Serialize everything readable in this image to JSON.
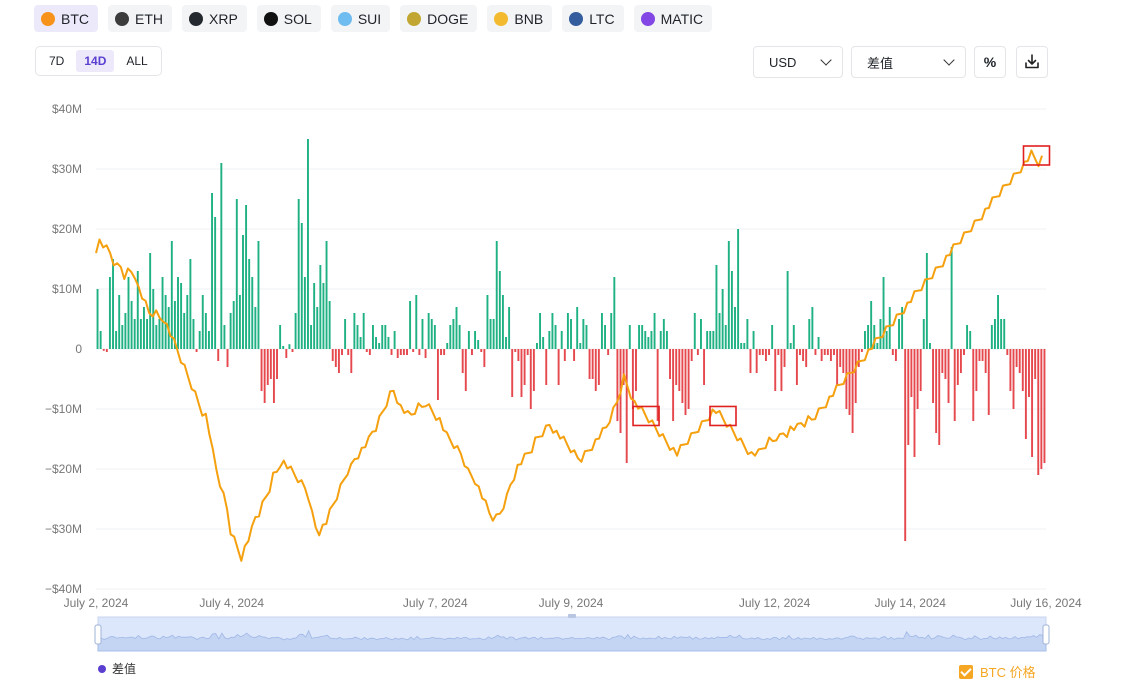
{
  "coins": [
    {
      "label": "BTC",
      "icon": "btc-icon",
      "color": "#f7931a",
      "active": true
    },
    {
      "label": "ETH",
      "icon": "eth-icon",
      "color": "#3c3c3d",
      "active": false
    },
    {
      "label": "XRP",
      "icon": "xrp-icon",
      "color": "#23292f",
      "active": false
    },
    {
      "label": "SOL",
      "icon": "sol-icon",
      "color": "#111111",
      "active": false
    },
    {
      "label": "SUI",
      "icon": "sui-icon",
      "color": "#6fbcf0",
      "active": false
    },
    {
      "label": "DOGE",
      "icon": "doge-icon",
      "color": "#c2a633",
      "active": false
    },
    {
      "label": "BNB",
      "icon": "bnb-icon",
      "color": "#f3ba2f",
      "active": false
    },
    {
      "label": "LTC",
      "icon": "ltc-icon",
      "color": "#345d9d",
      "active": false
    },
    {
      "label": "MATIC",
      "icon": "matic-icon",
      "color": "#8247e5",
      "active": false
    }
  ],
  "range_tabs": [
    {
      "label": "7D",
      "active": false
    },
    {
      "label": "14D",
      "active": true
    },
    {
      "label": "ALL",
      "active": false
    }
  ],
  "controls": {
    "currency": "USD",
    "metric": "差值",
    "percent_label": "%"
  },
  "chart_data": {
    "type": "bar",
    "title": "",
    "xlabel": "",
    "ylabel": "",
    "ylim": [
      -40,
      40
    ],
    "y_unit": "M USD",
    "y_ticks": [
      {
        "value": 40,
        "label": "$40M"
      },
      {
        "value": 30,
        "label": "$30M"
      },
      {
        "value": 20,
        "label": "$20M"
      },
      {
        "value": 10,
        "label": "$10M"
      },
      {
        "value": 0,
        "label": "0"
      },
      {
        "value": -10,
        "label": "−$10M"
      },
      {
        "value": -20,
        "label": "−$20M"
      },
      {
        "value": -30,
        "label": "−$30M"
      },
      {
        "value": -40,
        "label": "−$40M"
      }
    ],
    "x_ticks": [
      {
        "label": "July 2, 2024",
        "at": "2024-07-02"
      },
      {
        "label": "July 4, 2024",
        "at": "2024-07-04"
      },
      {
        "label": "July 7, 2024",
        "at": "2024-07-07"
      },
      {
        "label": "July 9, 2024",
        "at": "2024-07-09"
      },
      {
        "label": "July 12, 2024",
        "at": "2024-07-12"
      },
      {
        "label": "July 14, 2024",
        "at": "2024-07-14"
      },
      {
        "label": "July 16, 2024",
        "at": "2024-07-16"
      }
    ],
    "positive_color": "#1fb183",
    "negative_color": "#e5484d",
    "line_color": "#f5a00e",
    "series": [
      {
        "name": "差值",
        "kind": "bar",
        "values": [
          10,
          3,
          -0.3,
          -0.5,
          12,
          15,
          3,
          9,
          4,
          6,
          12,
          8,
          5,
          13,
          5,
          7,
          5,
          16,
          10,
          4,
          5,
          12,
          9,
          7,
          18,
          8,
          12,
          11,
          6,
          9,
          15,
          5,
          -0.5,
          3,
          9,
          6,
          3,
          26,
          22,
          -2,
          31,
          4,
          -3,
          6,
          8,
          25,
          9,
          19,
          24,
          15,
          12,
          7,
          18,
          -7,
          -9,
          -6,
          -5,
          -9,
          -5,
          4,
          0.5,
          -1.5,
          0.8,
          -0.5,
          6,
          25,
          21,
          12,
          35,
          4,
          11,
          7,
          14,
          11,
          18,
          8,
          -2,
          -3,
          -4,
          -1,
          5,
          -1,
          -4,
          6,
          4,
          2,
          6,
          -0.5,
          -1,
          4,
          2,
          1,
          4,
          4,
          2,
          -1,
          3,
          -1.5,
          -1,
          -1,
          -1,
          8,
          -0.5,
          9,
          -1,
          5,
          -1.5,
          6,
          5,
          4,
          -8.5,
          -1,
          -1,
          1,
          4,
          5,
          7,
          4,
          -4,
          -7,
          3,
          -1,
          3,
          1.5,
          -0.5,
          -3,
          9,
          5,
          5,
          18,
          13,
          9,
          2,
          7,
          -8,
          -0.5,
          -2,
          -8,
          -6,
          -1,
          -10,
          -7,
          1,
          6,
          2,
          -6,
          3,
          6,
          4,
          -6,
          3,
          -2,
          6,
          5,
          -2,
          7,
          1,
          5,
          4,
          -5,
          -5,
          -7,
          -6,
          6,
          4,
          -1,
          6,
          12,
          -12,
          -14,
          -6,
          -19,
          4,
          -10,
          -7,
          4,
          4,
          3,
          2,
          3,
          6,
          -12,
          3,
          5,
          3,
          -5,
          -12,
          -6,
          -7,
          -9,
          -11,
          -10,
          -2,
          6,
          -1,
          5,
          -6,
          3,
          3,
          3,
          14,
          6,
          10,
          4,
          18,
          13,
          7,
          20,
          1,
          1,
          5,
          -4,
          3,
          -4,
          -1,
          -1,
          -2,
          -1,
          4,
          -7,
          -1,
          -7,
          -3,
          13,
          1,
          4,
          -6,
          -1,
          -2,
          -3,
          5,
          7,
          -1,
          2,
          -2,
          -1,
          -1,
          -2,
          -1,
          -6,
          -3,
          -4,
          -10,
          -11,
          -14,
          -9,
          -3,
          -0.5,
          3,
          4,
          8,
          4,
          1,
          5,
          12,
          3,
          7,
          -1,
          -2,
          5,
          7,
          -32,
          -16,
          -8,
          -18,
          -10,
          -7,
          5,
          16,
          1,
          -9,
          -14,
          -16,
          -4,
          -5,
          -9,
          17,
          -12,
          -6,
          -4,
          -1,
          4,
          3,
          -12,
          -7,
          -2,
          -2,
          -4,
          -11,
          4,
          5,
          9,
          5,
          5,
          -1,
          -7,
          -10,
          -3,
          -4,
          -7,
          -15,
          -8,
          -18,
          -5,
          -21,
          -20,
          -19
        ],
        "timespan_days": 14
      },
      {
        "name": "BTC 价格",
        "kind": "line",
        "axis": "unlabeled secondary",
        "relative_level_0_to_1": [
          0.76,
          0.8,
          0.79,
          0.78,
          0.77,
          0.75,
          0.74,
          0.74,
          0.72,
          0.73,
          0.73,
          0.7,
          0.69,
          0.67,
          0.65,
          0.63,
          0.63,
          0.63,
          0.62,
          0.62,
          0.6,
          0.58,
          0.56,
          0.54,
          0.52,
          0.5,
          0.48,
          0.46,
          0.44,
          0.42,
          0.4,
          0.39,
          0.35,
          0.3,
          0.26,
          0.23,
          0.2,
          0.17,
          0.12,
          0.1,
          0.08,
          0.06,
          0.08,
          0.1,
          0.12,
          0.15,
          0.16,
          0.18,
          0.2,
          0.22,
          0.25,
          0.26,
          0.28,
          0.28,
          0.27,
          0.26,
          0.25,
          0.24,
          0.23,
          0.22,
          0.2,
          0.16,
          0.13,
          0.12,
          0.13,
          0.14,
          0.16,
          0.18,
          0.2,
          0.22,
          0.24,
          0.26,
          0.27,
          0.29,
          0.3,
          0.31,
          0.32,
          0.33,
          0.35,
          0.36,
          0.38,
          0.4,
          0.42,
          0.44,
          0.45,
          0.43,
          0.41,
          0.4,
          0.39,
          0.39,
          0.4,
          0.41,
          0.41,
          0.42,
          0.41,
          0.4,
          0.39,
          0.38,
          0.36,
          0.34,
          0.33,
          0.32,
          0.31,
          0.3,
          0.28,
          0.26,
          0.25,
          0.24,
          0.22,
          0.2,
          0.18,
          0.16,
          0.15,
          0.15,
          0.16,
          0.18,
          0.2,
          0.23,
          0.25,
          0.27,
          0.28,
          0.29,
          0.3,
          0.31,
          0.33,
          0.34,
          0.35,
          0.36,
          0.37,
          0.36,
          0.35,
          0.34,
          0.33,
          0.32,
          0.31,
          0.3,
          0.29,
          0.29,
          0.3,
          0.31,
          0.32,
          0.33,
          0.34,
          0.35,
          0.36,
          0.38,
          0.4,
          0.42,
          0.45,
          0.48,
          0.46,
          0.44,
          0.42,
          0.41,
          0.4,
          0.39,
          0.38,
          0.37,
          0.36,
          0.35,
          0.34,
          0.33,
          0.32,
          0.31,
          0.3,
          0.31,
          0.32,
          0.33,
          0.34,
          0.35,
          0.36,
          0.37,
          0.38,
          0.39,
          0.4,
          0.4,
          0.39,
          0.38,
          0.37,
          0.36,
          0.35,
          0.34,
          0.33,
          0.32,
          0.31,
          0.3,
          0.3,
          0.3,
          0.31,
          0.32,
          0.33,
          0.33,
          0.34,
          0.34,
          0.35,
          0.35,
          0.36,
          0.36,
          0.36,
          0.37,
          0.37,
          0.38,
          0.38,
          0.39,
          0.4,
          0.41,
          0.42,
          0.43,
          0.44,
          0.45,
          0.46,
          0.47,
          0.48,
          0.49,
          0.5,
          0.51,
          0.52,
          0.53,
          0.54,
          0.55,
          0.56,
          0.57,
          0.58,
          0.59,
          0.6,
          0.61,
          0.62,
          0.63,
          0.64,
          0.65,
          0.66,
          0.67,
          0.68,
          0.69,
          0.7,
          0.71,
          0.72,
          0.73,
          0.74,
          0.75,
          0.76,
          0.77,
          0.78,
          0.79,
          0.8,
          0.81,
          0.82,
          0.83,
          0.84,
          0.85,
          0.86,
          0.87,
          0.88,
          0.89,
          0.9,
          0.91,
          0.92,
          0.93,
          0.94,
          0.95,
          0.96,
          0.97,
          0.98,
          0.99,
          1.0,
          0.99,
          0.98,
          0.99
        ]
      }
    ],
    "highlight_boxes_at_day_fraction": [
      0.579,
      0.66,
      0.99
    ],
    "grid": true,
    "legend": [
      "差值",
      "BTC 价格"
    ],
    "legend_placement": "bottom"
  },
  "legend": {
    "diff_label": "差值",
    "price_label": "BTC 价格"
  }
}
